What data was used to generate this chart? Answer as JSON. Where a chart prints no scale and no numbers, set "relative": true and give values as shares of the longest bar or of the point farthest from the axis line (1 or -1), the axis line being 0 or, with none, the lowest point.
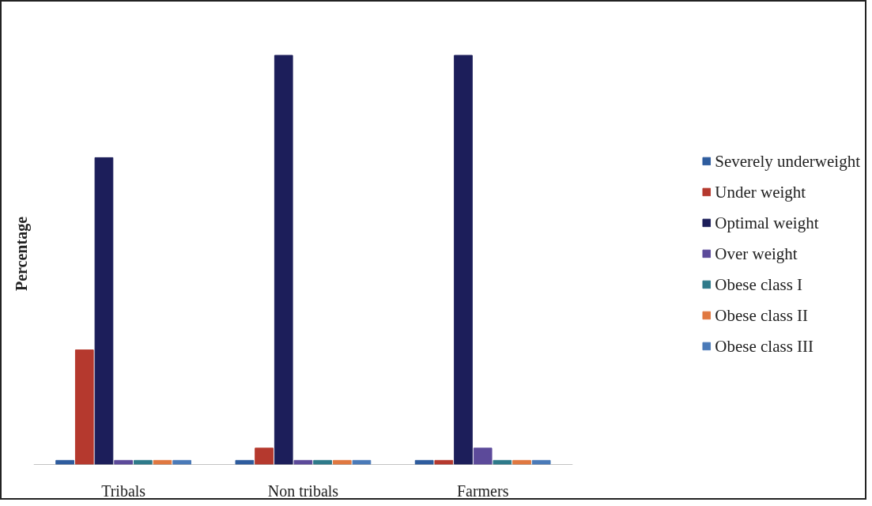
{
  "chart_data": {
    "type": "bar",
    "ylabel": "Percentage",
    "relative": true,
    "legend": "right",
    "categories": [
      "Tribals",
      "Non tribals",
      "Farmers"
    ],
    "series": [
      {
        "name": "Severely underweight",
        "color": "#2e5c9e",
        "values": [
          0.01,
          0.01,
          0.01
        ]
      },
      {
        "name": "Under weight",
        "color": "#b5392e",
        "values": [
          0.28,
          0.04,
          0.01
        ]
      },
      {
        "name": "Optimal weight",
        "color": "#1c1e5a",
        "values": [
          0.75,
          1,
          1
        ]
      },
      {
        "name": "Over weight",
        "color": "#5c4a9a",
        "values": [
          0.01,
          0.01,
          0.04
        ]
      },
      {
        "name": "Obese class I",
        "color": "#2e7a8a",
        "values": [
          0.01,
          0.01,
          0.01
        ]
      },
      {
        "name": "Obese class II",
        "color": "#e07840",
        "values": [
          0.01,
          0.01,
          0.01
        ]
      },
      {
        "name": "Obese class III",
        "color": "#4a7ab8",
        "values": [
          0.01,
          0.01,
          0.01
        ]
      }
    ]
  }
}
